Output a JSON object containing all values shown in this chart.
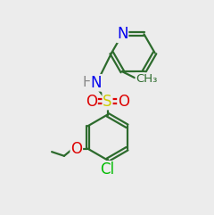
{
  "bg_color": "#ececec",
  "bond_color": "#2d6b2d",
  "N_color": "#0000ee",
  "O_color": "#dd0000",
  "S_color": "#cccc00",
  "Cl_color": "#00bb00",
  "H_color": "#888888",
  "lw": 1.6,
  "lw_double": 1.4,
  "fs": 10.5,
  "fs_small": 9.5
}
